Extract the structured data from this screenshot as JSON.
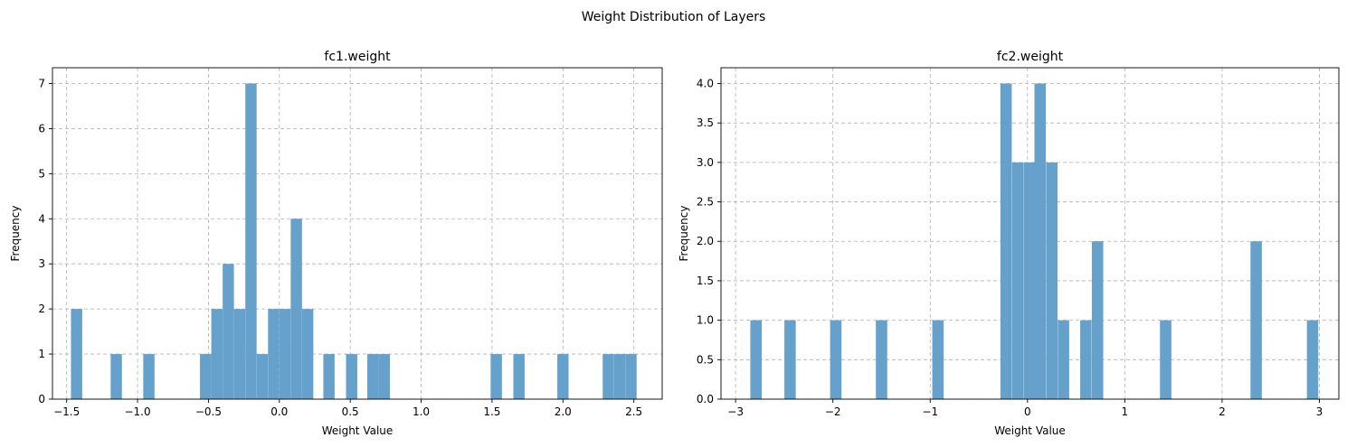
{
  "figure": {
    "suptitle": "Weight Distribution of Layers"
  },
  "colors": {
    "bar": "#66a1cc",
    "grid": "#b0b0b0",
    "axis": "#000000"
  },
  "chart_data": [
    {
      "type": "bar",
      "title": "fc1.weight",
      "xlabel": "Weight Value",
      "ylabel": "Frequency",
      "xlim": [
        -1.6,
        2.7
      ],
      "ylim": [
        0,
        7.35
      ],
      "grid": true,
      "bin_width": 0.0795,
      "xticks": [
        -1.5,
        -1.0,
        -0.5,
        0.0,
        0.5,
        1.0,
        1.5,
        2.0,
        2.5
      ],
      "xtick_labels": [
        "−1.5",
        "−1.0",
        "−0.5",
        "0.0",
        "0.5",
        "1.0",
        "1.5",
        "2.0",
        "2.5"
      ],
      "yticks": [
        0,
        1,
        2,
        3,
        4,
        5,
        6,
        7
      ],
      "ytick_labels": [
        "0",
        "1",
        "2",
        "3",
        "4",
        "5",
        "6",
        "7"
      ],
      "bars": [
        {
          "x": -1.43,
          "value": 2
        },
        {
          "x": -1.15,
          "value": 1
        },
        {
          "x": -0.92,
          "value": 1
        },
        {
          "x": -0.52,
          "value": 1
        },
        {
          "x": -0.44,
          "value": 2
        },
        {
          "x": -0.36,
          "value": 3
        },
        {
          "x": -0.28,
          "value": 2
        },
        {
          "x": -0.2,
          "value": 7
        },
        {
          "x": -0.12,
          "value": 1
        },
        {
          "x": -0.04,
          "value": 2
        },
        {
          "x": 0.04,
          "value": 2
        },
        {
          "x": 0.12,
          "value": 4
        },
        {
          "x": 0.2,
          "value": 2
        },
        {
          "x": 0.35,
          "value": 1
        },
        {
          "x": 0.51,
          "value": 1
        },
        {
          "x": 0.66,
          "value": 1
        },
        {
          "x": 0.74,
          "value": 1
        },
        {
          "x": 1.53,
          "value": 1
        },
        {
          "x": 1.69,
          "value": 1
        },
        {
          "x": 2.0,
          "value": 1
        },
        {
          "x": 2.32,
          "value": 1
        },
        {
          "x": 2.4,
          "value": 1
        },
        {
          "x": 2.48,
          "value": 1
        }
      ]
    },
    {
      "type": "bar",
      "title": "fc2.weight",
      "xlabel": "Weight Value",
      "ylabel": "Frequency",
      "xlim": [
        -3.15,
        3.2
      ],
      "ylim": [
        0,
        4.2
      ],
      "grid": true,
      "bin_width": 0.117,
      "xticks": [
        -3,
        -2,
        -1,
        0,
        1,
        2,
        3
      ],
      "xtick_labels": [
        "−3",
        "−2",
        "−1",
        "0",
        "1",
        "2",
        "3"
      ],
      "yticks": [
        0,
        0.5,
        1.0,
        1.5,
        2.0,
        2.5,
        3.0,
        3.5,
        4.0
      ],
      "ytick_labels": [
        "0.0",
        "0.5",
        "1.0",
        "1.5",
        "2.0",
        "2.5",
        "3.0",
        "3.5",
        "4.0"
      ],
      "bars": [
        {
          "x": -2.79,
          "value": 1
        },
        {
          "x": -2.44,
          "value": 1
        },
        {
          "x": -1.97,
          "value": 1
        },
        {
          "x": -1.5,
          "value": 1
        },
        {
          "x": -0.92,
          "value": 1
        },
        {
          "x": -0.22,
          "value": 4
        },
        {
          "x": -0.1,
          "value": 3
        },
        {
          "x": 0.02,
          "value": 3
        },
        {
          "x": 0.13,
          "value": 4
        },
        {
          "x": 0.25,
          "value": 3
        },
        {
          "x": 0.37,
          "value": 1
        },
        {
          "x": 0.6,
          "value": 1
        },
        {
          "x": 0.72,
          "value": 2
        },
        {
          "x": 1.42,
          "value": 1
        },
        {
          "x": 2.35,
          "value": 2
        },
        {
          "x": 2.93,
          "value": 1
        }
      ]
    }
  ]
}
